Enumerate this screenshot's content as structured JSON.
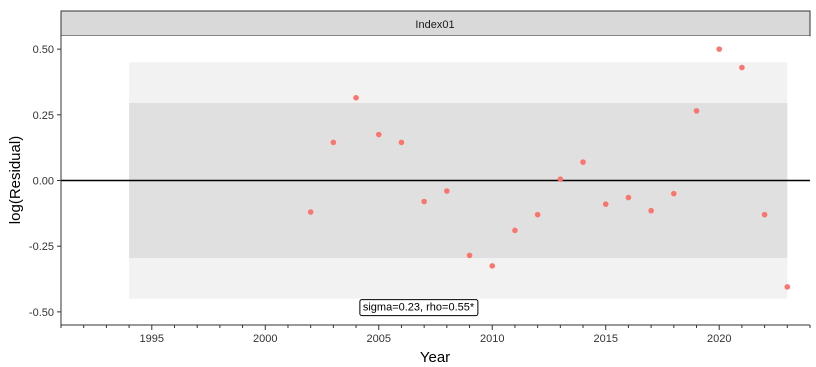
{
  "chart_data": {
    "type": "scatter",
    "panel_title": "Index01",
    "xlabel": "Year",
    "ylabel": "log(Residual)",
    "xlim": [
      1991,
      2024
    ],
    "ylim": [
      -0.55,
      0.55
    ],
    "x_ticks": [
      1995,
      2000,
      2005,
      2010,
      2015,
      2020
    ],
    "y_ticks": [
      -0.5,
      -0.25,
      0.0,
      0.25,
      0.5
    ],
    "y_tick_labels": [
      "-0.50",
      "-0.25",
      "0.00",
      "0.25",
      "0.50"
    ],
    "bands": [
      {
        "x_range": [
          1994,
          2023
        ],
        "y_range": [
          -0.45,
          0.45
        ],
        "color": "#f2f2f2"
      },
      {
        "x_range": [
          1994,
          2023
        ],
        "y_range": [
          -0.295,
          0.295
        ],
        "color": "#e0e0e0"
      }
    ],
    "zero_line": 0,
    "point_color": "#f8766d",
    "points": [
      {
        "x": 2002,
        "y": -0.12
      },
      {
        "x": 2003,
        "y": 0.145
      },
      {
        "x": 2004,
        "y": 0.315
      },
      {
        "x": 2005,
        "y": 0.175
      },
      {
        "x": 2006,
        "y": 0.145
      },
      {
        "x": 2007,
        "y": -0.08
      },
      {
        "x": 2008,
        "y": -0.04
      },
      {
        "x": 2009,
        "y": -0.285
      },
      {
        "x": 2010,
        "y": -0.325
      },
      {
        "x": 2011,
        "y": -0.19
      },
      {
        "x": 2012,
        "y": -0.13
      },
      {
        "x": 2013,
        "y": 0.005
      },
      {
        "x": 2014,
        "y": 0.07
      },
      {
        "x": 2015,
        "y": -0.09
      },
      {
        "x": 2016,
        "y": -0.065
      },
      {
        "x": 2017,
        "y": -0.115
      },
      {
        "x": 2018,
        "y": -0.05
      },
      {
        "x": 2019,
        "y": 0.265
      },
      {
        "x": 2020,
        "y": 0.5
      },
      {
        "x": 2021,
        "y": 0.43
      },
      {
        "x": 2022,
        "y": -0.13
      },
      {
        "x": 2023,
        "y": -0.405
      }
    ],
    "annotation": {
      "text": "sigma=0.23, rho=0.55*",
      "x": 2004.3,
      "y": -0.48
    }
  }
}
